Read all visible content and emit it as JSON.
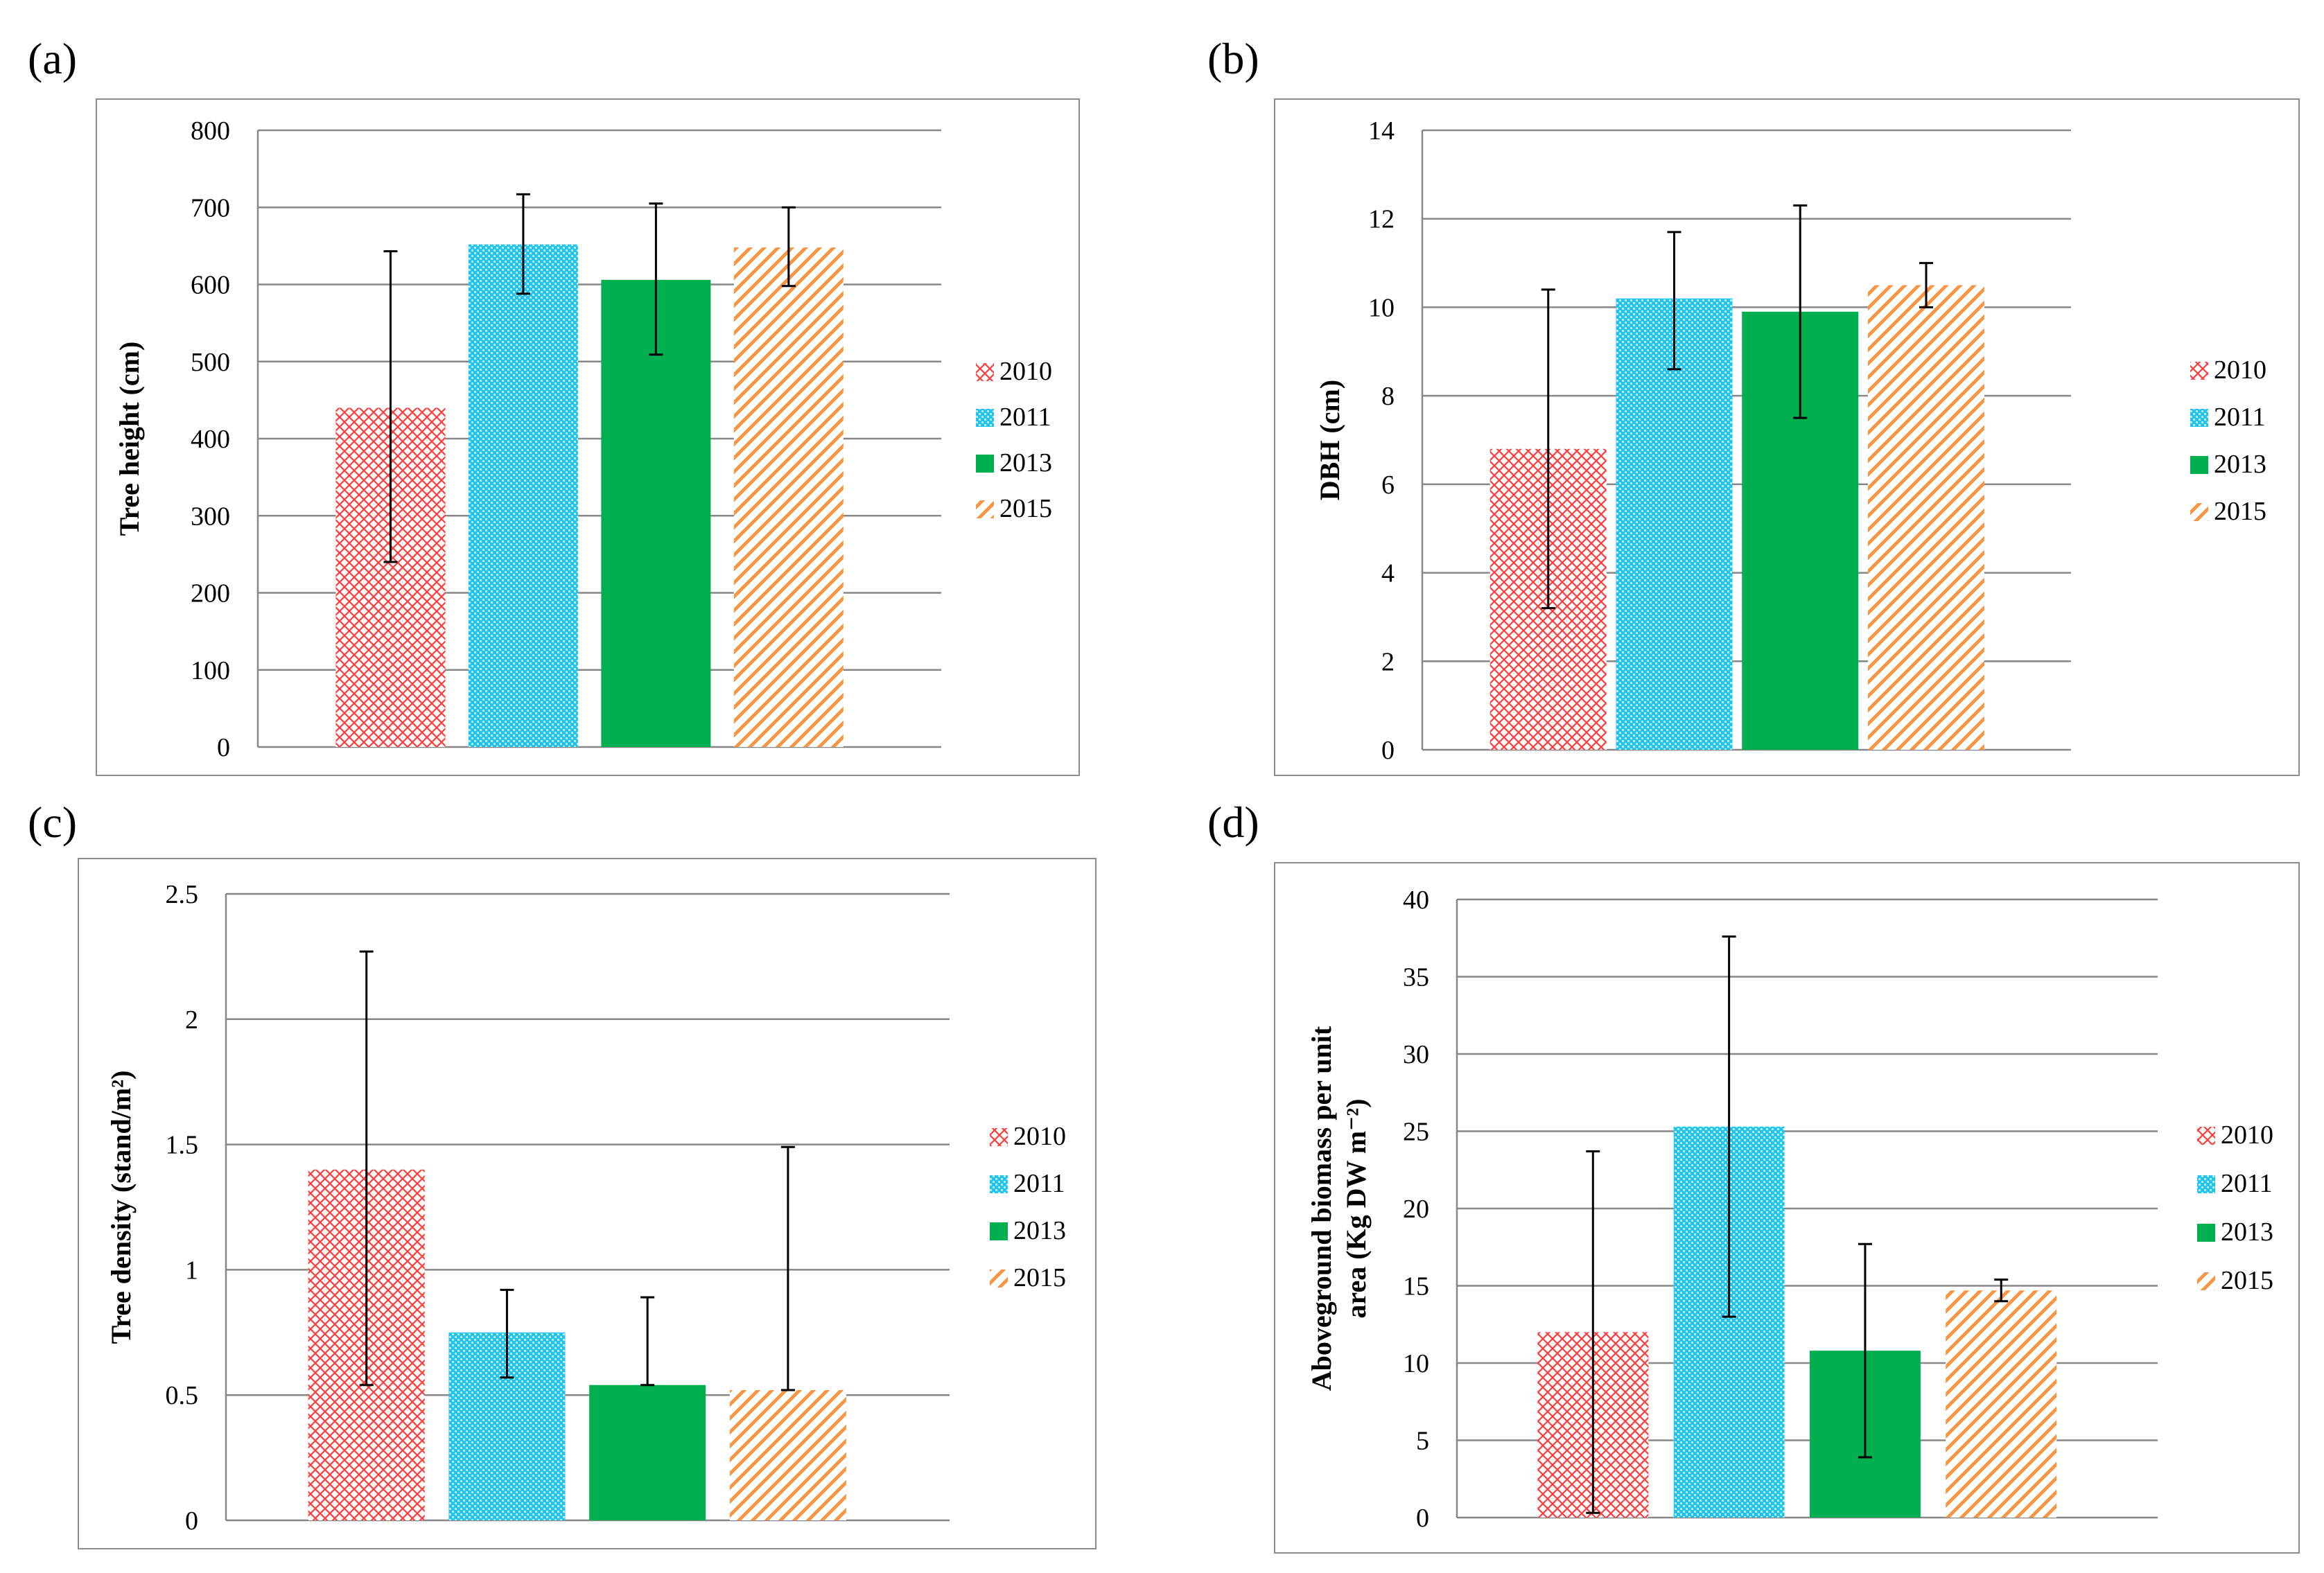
{
  "patterns": {
    "2010": {
      "color": "#ff3b3b",
      "style": "crosshatch"
    },
    "2011": {
      "color": "#1fc4f0",
      "style": "checker"
    },
    "2013": {
      "color": "#00b050",
      "style": "solid"
    },
    "2015": {
      "color": "#f79646",
      "style": "diagonal"
    }
  },
  "chart_data": [
    {
      "panel": "(a)",
      "type": "bar",
      "ylabel": "Tree height (cm)",
      "ylim": [
        0,
        800
      ],
      "yticks": [
        "0",
        "100",
        "200",
        "300",
        "400",
        "500",
        "600",
        "700",
        "800"
      ],
      "categories": [
        "2010",
        "2011",
        "2013",
        "2015"
      ],
      "values": [
        440,
        652,
        606,
        648
      ],
      "errors": [
        [
          240,
          643
        ],
        [
          588,
          717
        ],
        [
          509,
          705
        ],
        [
          598,
          700
        ]
      ],
      "legend": [
        "2010",
        "2011",
        "2013",
        "2015"
      ],
      "legend_position": "right",
      "grid": true
    },
    {
      "panel": "(b)",
      "type": "bar",
      "ylabel": "DBH (cm)",
      "ylim": [
        0,
        14
      ],
      "yticks": [
        "0",
        "2",
        "4",
        "6",
        "8",
        "10",
        "12",
        "14"
      ],
      "categories": [
        "2010",
        "2011",
        "2013",
        "2015"
      ],
      "values": [
        6.8,
        10.2,
        9.9,
        10.5
      ],
      "errors": [
        [
          3.2,
          10.4
        ],
        [
          8.6,
          11.7
        ],
        [
          7.5,
          12.3
        ],
        [
          10.0,
          11.0
        ]
      ],
      "legend": [
        "2010",
        "2011",
        "2013",
        "2015"
      ],
      "legend_position": "right",
      "grid": true
    },
    {
      "panel": "(c)",
      "type": "bar",
      "ylabel": "Tree density (stand/m²)",
      "ylim": [
        0,
        2.5
      ],
      "yticks": [
        "0",
        "0.5",
        "1",
        "1.5",
        "2",
        "2.5"
      ],
      "categories": [
        "2010",
        "2011",
        "2013",
        "2015"
      ],
      "values": [
        1.4,
        0.75,
        0.54,
        0.52
      ],
      "errors": [
        [
          0.54,
          2.27
        ],
        [
          0.57,
          0.92
        ],
        [
          0.54,
          0.89
        ],
        [
          0.52,
          1.49
        ]
      ],
      "legend": [
        "2010",
        "2011",
        "2013",
        "2015"
      ],
      "legend_position": "right",
      "grid": true
    },
    {
      "panel": "(d)",
      "type": "bar",
      "ylabel_lines": [
        "Aboveground  biomass  per unit",
        "area (Kg DW m⁻²)"
      ],
      "ylim": [
        0,
        40
      ],
      "yticks": [
        "0",
        "5",
        "10",
        "15",
        "20",
        "25",
        "30",
        "35",
        "40"
      ],
      "categories": [
        "2010",
        "2011",
        "2013",
        "2015"
      ],
      "values": [
        12.0,
        25.3,
        10.8,
        14.7
      ],
      "errors": [
        [
          0.3,
          23.7
        ],
        [
          13.0,
          37.6
        ],
        [
          3.9,
          17.7
        ],
        [
          14.0,
          15.4
        ]
      ],
      "legend": [
        "2010",
        "2011",
        "2013",
        "2015"
      ],
      "legend_position": "right",
      "grid": true
    }
  ]
}
